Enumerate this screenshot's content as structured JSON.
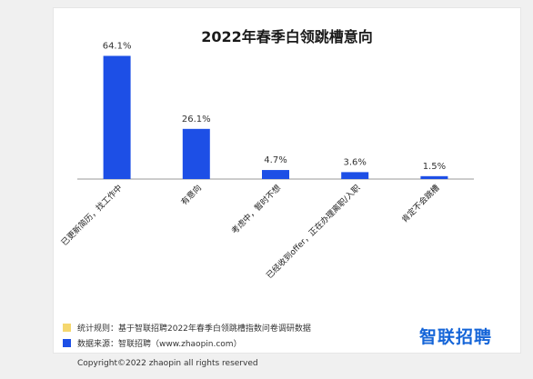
{
  "chart_data": {
    "type": "bar",
    "title": "2022年春季白领跳槽意向",
    "categories": [
      "已更新简历，找工作中",
      "有意向",
      "考虑中，暂时不想",
      "已经收到offer，正在办理离职/入职",
      "肯定不会跳槽"
    ],
    "values": [
      64.1,
      26.1,
      4.7,
      3.6,
      1.5
    ],
    "value_labels": [
      "64.1%",
      "26.1%",
      "4.7%",
      "3.6%",
      "1.5%"
    ],
    "ylim": [
      0,
      70
    ],
    "grid": false,
    "bar_color": "#1d4fe6"
  },
  "legend": [
    {
      "color": "#f5d76e",
      "text": "统计规则：基于智联招聘2022年春季白领跳槽指数问卷调研数据"
    },
    {
      "color": "#1d4fe6",
      "text": "数据来源：智联招聘（www.zhaopin.com）"
    }
  ],
  "brand": "智联招聘",
  "copyright": "Copyright©2022 zhaopin all rights reserved"
}
